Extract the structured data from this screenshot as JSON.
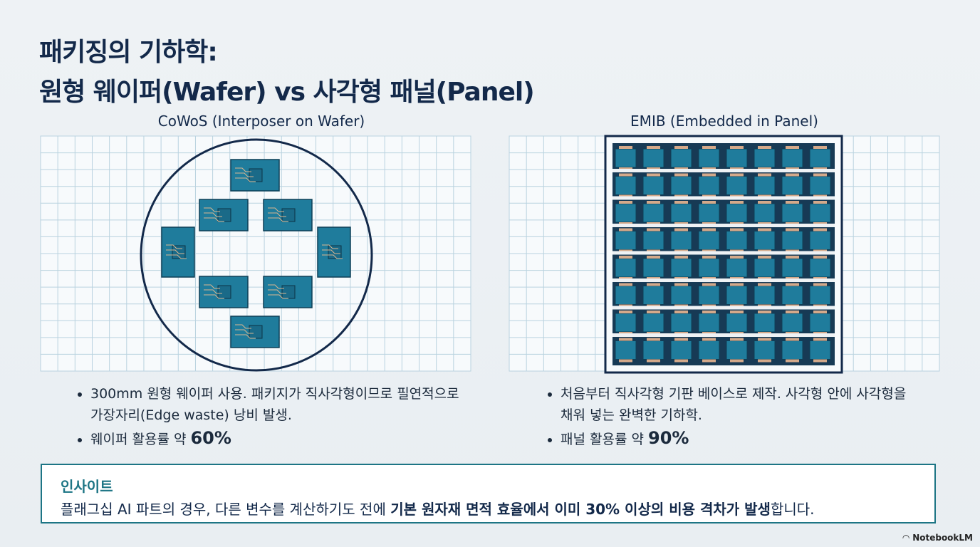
{
  "header": {
    "title_line1": "패키징의 기하학:",
    "title_line2": "원형 웨이퍼(Wafer) vs 사각형 패널(Panel)"
  },
  "left": {
    "caption": "CoWoS (Interposer on Wafer)",
    "bullet1": "300mm 원형 웨이퍼 사용. 패키지가 직사각형이므로 필연적으로 가장자리(Edge waste) 낭비 발생.",
    "bullet2_text": "웨이퍼 활용률 약 ",
    "bullet2_bold": "60%"
  },
  "right": {
    "caption": "EMIB (Embedded in Panel)",
    "bullet1": "처음부터 직사각형 기판 베이스로 제작. 사각형 안에 사각형을 채워 넣는 완벽한 기하학.",
    "bullet2_text": "패널 활용률 약 ",
    "bullet2_bold": "90%"
  },
  "insight": {
    "title": "인사이트",
    "text_start": "플래그십 AI 파트의 경우, 다른 변수를 계산하기도 전에 ",
    "text_bold": "기본 원자재 면적 효율에서 이미 30% 이상의 비용 격차가 발생",
    "text_end": "합니다."
  },
  "footer": {
    "brand": "NotebookLM"
  }
}
